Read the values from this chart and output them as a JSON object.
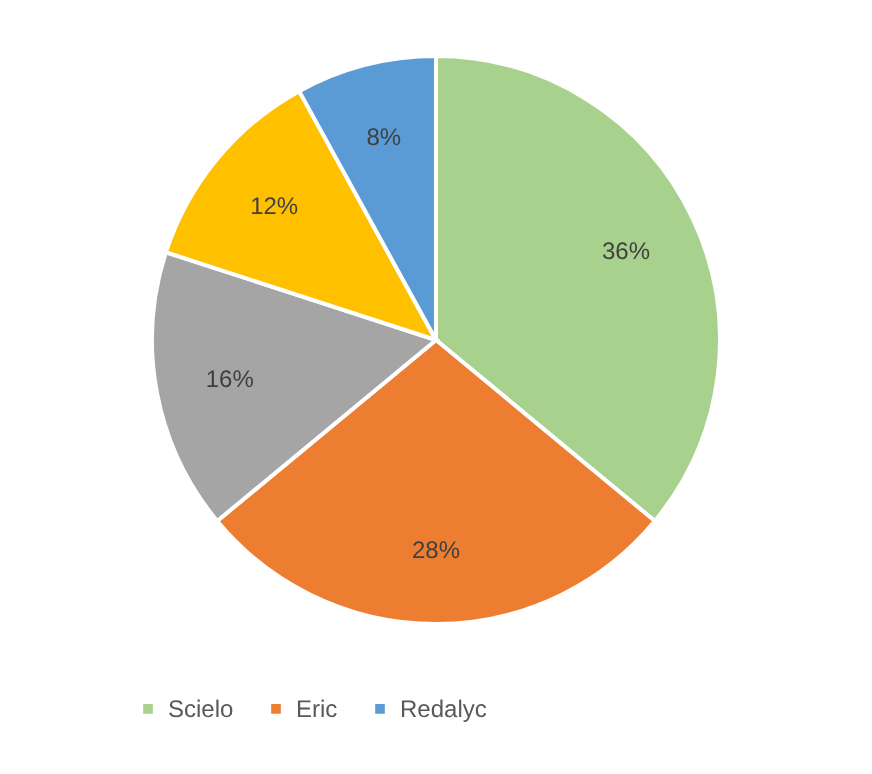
{
  "chart_data": {
    "type": "pie",
    "categories": [
      "Scielo",
      "Eric",
      null,
      null,
      "Redalyc"
    ],
    "values": [
      36,
      28,
      16,
      12,
      8
    ],
    "colors": [
      "#a9d18e",
      "#ed7d31",
      "#a5a5a5",
      "#ffc000",
      "#5b9bd5"
    ],
    "value_labels": [
      "36%",
      "28%",
      "16%",
      "12%",
      "8%"
    ],
    "legend": "bottom"
  }
}
